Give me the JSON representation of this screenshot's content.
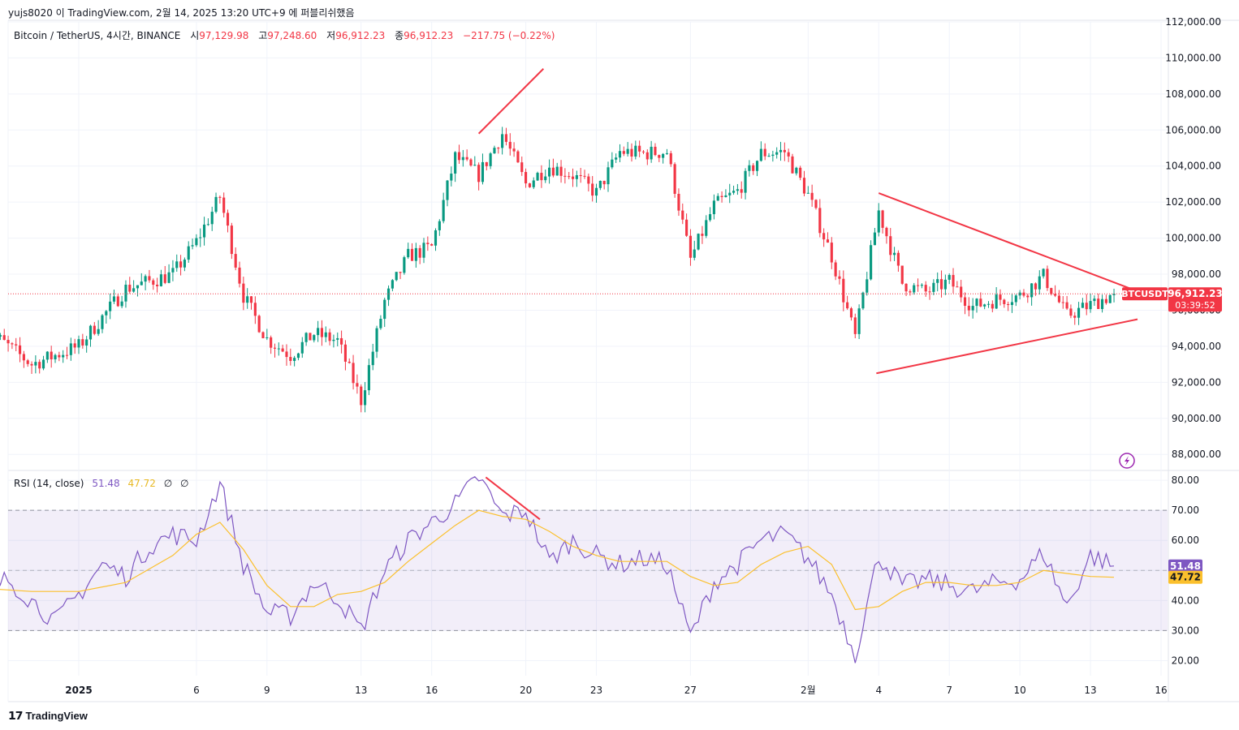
{
  "header": {
    "attribution": "yujs8020 이 TradingView.com, 2월 14, 2025 13:20 UTC+9 에 퍼블리쉬했음"
  },
  "legend": {
    "symbol": "Bitcoin / TetherUS, 4시간, BINANCE",
    "open_label": "시",
    "open": "97,129.98",
    "high_label": "고",
    "high": "97,248.60",
    "low_label": "저",
    "low": "96,912.23",
    "close_label": "종",
    "close": "96,912.23",
    "change": "−217.75 (−0.22%)"
  },
  "rsi_legend": {
    "label": "RSI (14, close)",
    "rsi": "51.48",
    "ma": "47.72",
    "v3": "∅",
    "v4": "∅"
  },
  "footer": {
    "brand": "TradingView"
  },
  "colors": {
    "up": "#089981",
    "down": "#f23645",
    "rsi": "#7e57c2",
    "rsi_ma": "#fbc02d",
    "drawing": "#f23645",
    "band": "#7e57c2"
  },
  "chart_data": [
    {
      "type": "candlestick",
      "title": "Bitcoin / TetherUS, 4시간, BINANCE",
      "ylim": [
        87200,
        112000
      ],
      "y_ticks": [
        88000,
        90000,
        92000,
        94000,
        96000,
        98000,
        100000,
        102000,
        104000,
        106000,
        108000,
        110000,
        112000
      ],
      "y_tick_labels": [
        "88,000.00",
        "90,000.00",
        "92,000.00",
        "94,000.00",
        "96,000.00",
        "98,000.00",
        "100,000.00",
        "102,000.00",
        "104,000.00",
        "106,000.00",
        "108,000.00",
        "110,000.00",
        "112,000.00"
      ],
      "x_tick_labels": [
        "2025",
        "6",
        "9",
        "13",
        "16",
        "20",
        "23",
        "27",
        "2월",
        "4",
        "7",
        "10",
        "13",
        "16"
      ],
      "x_ticks_days": [
        "2025-01-01",
        "2025-01-06",
        "2025-01-09",
        "2025-01-13",
        "2025-01-16",
        "2025-01-20",
        "2025-01-23",
        "2025-01-27",
        "2025-02-01",
        "2025-02-04",
        "2025-02-07",
        "2025-02-10",
        "2025-02-13",
        "2025-02-16"
      ],
      "last_price": 96912.23,
      "price_label": {
        "symbol": "BTCUSDT",
        "price": "96,912.23",
        "countdown": "03:39:52"
      },
      "close_path": [
        [
          "2024-12-28",
          95000
        ],
        [
          "2024-12-30",
          93000
        ],
        [
          "2025-01-01",
          94000
        ],
        [
          "2025-01-03",
          97200
        ],
        [
          "2025-01-05",
          98000
        ],
        [
          "2025-01-06",
          99800
        ],
        [
          "2025-01-07",
          102300
        ],
        [
          "2025-01-08",
          96800
        ],
        [
          "2025-01-09",
          94400
        ],
        [
          "2025-01-10",
          93500
        ],
        [
          "2025-01-11",
          94700
        ],
        [
          "2025-01-12",
          94300
        ],
        [
          "2025-01-13",
          91000
        ],
        [
          "2025-01-14",
          96500
        ],
        [
          "2025-01-15",
          99000
        ],
        [
          "2025-01-16",
          99500
        ],
        [
          "2025-01-17",
          104500
        ],
        [
          "2025-01-18",
          103500
        ],
        [
          "2025-01-19",
          105800
        ],
        [
          "2025-01-20",
          103000
        ],
        [
          "2025-01-21",
          104000
        ],
        [
          "2025-01-22",
          103500
        ],
        [
          "2025-01-23",
          102500
        ],
        [
          "2025-01-24",
          104800
        ],
        [
          "2025-01-25",
          104700
        ],
        [
          "2025-01-26",
          104800
        ],
        [
          "2025-01-27",
          98800
        ],
        [
          "2025-01-28",
          101800
        ],
        [
          "2025-01-29",
          102600
        ],
        [
          "2025-01-30",
          104700
        ],
        [
          "2025-01-31",
          104800
        ],
        [
          "2025-02-01",
          102400
        ],
        [
          "2025-02-02",
          99000
        ],
        [
          "2025-02-03",
          94500
        ],
        [
          "2025-02-04",
          101500
        ],
        [
          "2025-02-05",
          97500
        ],
        [
          "2025-02-06",
          97000
        ],
        [
          "2025-02-07",
          97600
        ],
        [
          "2025-02-08",
          96200
        ],
        [
          "2025-02-09",
          96600
        ],
        [
          "2025-02-10",
          96800
        ],
        [
          "2025-02-11",
          97900
        ],
        [
          "2025-02-12",
          95700
        ],
        [
          "2025-02-13",
          96300
        ],
        [
          "2025-02-14",
          96912
        ]
      ],
      "drawings": [
        {
          "type": "trendline",
          "from": [
            "2025-01-18",
            105800
          ],
          "to": [
            "2025-01-20.75",
            109400
          ]
        },
        {
          "type": "trendline",
          "from": [
            "2025-02-04",
            102500
          ],
          "to": [
            "2025-02-14.7",
            97200
          ]
        },
        {
          "type": "trendline",
          "from": [
            "2025-02-03.9",
            92500
          ],
          "to": [
            "2025-02-15",
            95500
          ]
        }
      ]
    },
    {
      "type": "line",
      "title": "RSI (14, close)",
      "ylim": [
        15,
        83
      ],
      "y_ticks": [
        20,
        30,
        40,
        50,
        60,
        70,
        80
      ],
      "y_tick_labels": [
        "20.00",
        "30.00",
        "40.00",
        "50.00",
        "60.00",
        "70.00",
        "80.00"
      ],
      "bands": [
        30,
        50,
        70
      ],
      "last_rsi": 51.48,
      "last_ma": 47.72,
      "series": [
        {
          "role": "rsi",
          "points": [
            [
              "2024-12-28",
              44
            ],
            [
              "2024-12-29",
              47
            ],
            [
              "2024-12-30",
              40
            ],
            [
              "2024-12-31",
              33
            ],
            [
              "2025-01-01",
              42
            ],
            [
              "2025-01-02",
              52
            ],
            [
              "2025-01-03",
              48
            ],
            [
              "2025-01-04",
              58
            ],
            [
              "2025-01-05",
              62
            ],
            [
              "2025-01-06",
              60
            ],
            [
              "2025-01-07",
              79
            ],
            [
              "2025-01-08",
              52
            ],
            [
              "2025-01-09",
              36
            ],
            [
              "2025-01-10",
              35
            ],
            [
              "2025-01-11",
              46
            ],
            [
              "2025-01-12",
              41
            ],
            [
              "2025-01-13",
              30
            ],
            [
              "2025-01-14",
              50
            ],
            [
              "2025-01-15",
              60
            ],
            [
              "2025-01-16",
              66
            ],
            [
              "2025-01-17",
              72
            ],
            [
              "2025-01-18",
              81
            ],
            [
              "2025-01-19",
              68
            ],
            [
              "2025-01-20",
              70
            ],
            [
              "2025-01-21",
              53
            ],
            [
              "2025-01-22",
              60
            ],
            [
              "2025-01-23",
              55
            ],
            [
              "2025-01-24",
              52
            ],
            [
              "2025-01-25",
              54
            ],
            [
              "2025-01-26",
              52
            ],
            [
              "2025-01-27",
              28
            ],
            [
              "2025-01-28",
              46
            ],
            [
              "2025-01-29",
              52
            ],
            [
              "2025-01-30",
              60
            ],
            [
              "2025-01-31",
              62
            ],
            [
              "2025-02-01",
              54
            ],
            [
              "2025-02-02",
              42
            ],
            [
              "2025-02-03",
              22
            ],
            [
              "2025-02-04",
              55
            ],
            [
              "2025-02-05",
              45
            ],
            [
              "2025-02-06",
              47
            ],
            [
              "2025-02-07",
              45
            ],
            [
              "2025-02-08",
              43
            ],
            [
              "2025-02-09",
              46
            ],
            [
              "2025-02-10",
              47
            ],
            [
              "2025-02-11",
              56
            ],
            [
              "2025-02-12",
              38
            ],
            [
              "2025-02-13",
              55
            ],
            [
              "2025-02-14",
              51.48
            ]
          ]
        },
        {
          "role": "ma",
          "points": [
            [
              "2024-12-28",
              44
            ],
            [
              "2024-12-30",
              43
            ],
            [
              "2025-01-01",
              43
            ],
            [
              "2025-01-03",
              46
            ],
            [
              "2025-01-05",
              55
            ],
            [
              "2025-01-06",
              62
            ],
            [
              "2025-01-07",
              66
            ],
            [
              "2025-01-08",
              57
            ],
            [
              "2025-01-09",
              45
            ],
            [
              "2025-01-10",
              38
            ],
            [
              "2025-01-11",
              38
            ],
            [
              "2025-01-12",
              42
            ],
            [
              "2025-01-13",
              43
            ],
            [
              "2025-01-14",
              46
            ],
            [
              "2025-01-15",
              53
            ],
            [
              "2025-01-16",
              59
            ],
            [
              "2025-01-17",
              65
            ],
            [
              "2025-01-18",
              70
            ],
            [
              "2025-01-19",
              68
            ],
            [
              "2025-01-20",
              67
            ],
            [
              "2025-01-21",
              63
            ],
            [
              "2025-01-22",
              58
            ],
            [
              "2025-01-23",
              55
            ],
            [
              "2025-01-24",
              53
            ],
            [
              "2025-01-25",
              53
            ],
            [
              "2025-01-26",
              53
            ],
            [
              "2025-01-27",
              48
            ],
            [
              "2025-01-28",
              45
            ],
            [
              "2025-01-29",
              46
            ],
            [
              "2025-01-30",
              52
            ],
            [
              "2025-01-31",
              56
            ],
            [
              "2025-02-01",
              58
            ],
            [
              "2025-02-02",
              52
            ],
            [
              "2025-02-03",
              37
            ],
            [
              "2025-02-04",
              38
            ],
            [
              "2025-02-05",
              43
            ],
            [
              "2025-02-06",
              46
            ],
            [
              "2025-02-07",
              46
            ],
            [
              "2025-02-08",
              45
            ],
            [
              "2025-02-09",
              45
            ],
            [
              "2025-02-10",
              46
            ],
            [
              "2025-02-11",
              50
            ],
            [
              "2025-02-12",
              49
            ],
            [
              "2025-02-13",
              48
            ],
            [
              "2025-02-14",
              47.72
            ]
          ]
        }
      ],
      "drawings": [
        {
          "type": "trendline",
          "from": [
            "2025-01-18.3",
            81
          ],
          "to": [
            "2025-01-20.6",
            67
          ]
        }
      ]
    }
  ]
}
